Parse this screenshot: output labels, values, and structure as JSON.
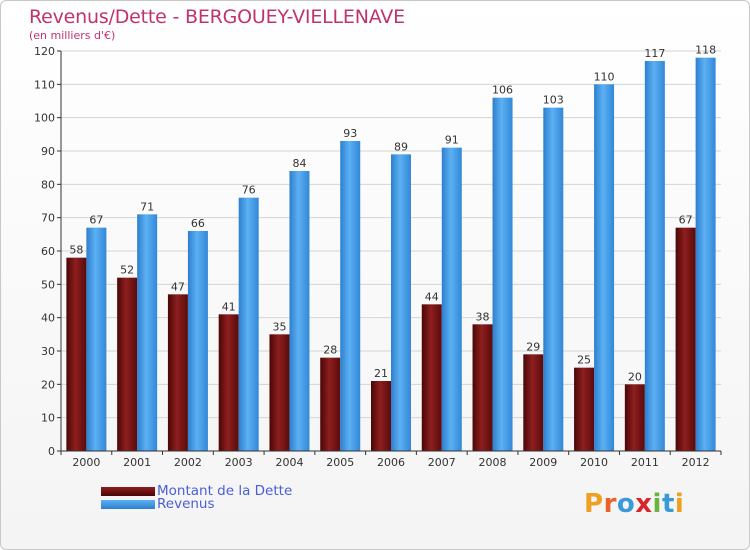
{
  "title": "Revenus/Dette - BERGOUEY-VIELLENAVE",
  "subtitle": "(en milliers d'€)",
  "legend": [
    {
      "label": "Montant de la Dette",
      "color": "#6b1010"
    },
    {
      "label": "Revenus",
      "color": "#3a94e0"
    }
  ],
  "logo": {
    "text": "Proxiti",
    "letters": [
      "P",
      "r",
      "o",
      "x",
      "i",
      "t",
      "i"
    ],
    "colors": [
      "#f0a020",
      "#e8632b",
      "#3a9ad9",
      "#d8242a",
      "#6cb33f",
      "#3a9ad9",
      "#f0a020"
    ]
  },
  "chart_data": {
    "type": "bar",
    "title": "Revenus/Dette - BERGOUEY-VIELLENAVE",
    "ylabel": "(en milliers d'€)",
    "xlabel": "",
    "categories": [
      "2000",
      "2001",
      "2002",
      "2003",
      "2004",
      "2005",
      "2006",
      "2007",
      "2008",
      "2009",
      "2010",
      "2011",
      "2012"
    ],
    "series": [
      {
        "name": "Montant de la Dette",
        "color": "#6b1010",
        "values": [
          58,
          52,
          47,
          41,
          35,
          28,
          21,
          44,
          38,
          29,
          25,
          20,
          67
        ]
      },
      {
        "name": "Revenus",
        "color": "#3a94e0",
        "values": [
          67,
          71,
          66,
          76,
          84,
          93,
          89,
          91,
          106,
          103,
          110,
          117,
          118
        ]
      }
    ],
    "ylim": [
      0,
      120
    ],
    "yticks": [
      0,
      10,
      20,
      30,
      40,
      50,
      60,
      70,
      80,
      90,
      100,
      110,
      120
    ],
    "grid": true,
    "legend_position": "bottom-left"
  }
}
